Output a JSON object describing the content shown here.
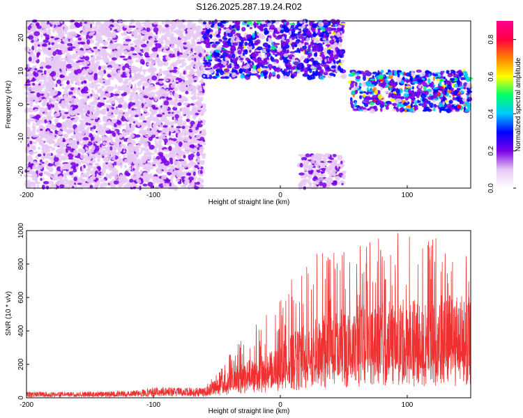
{
  "title": "S126.2025.287.19.24.R02",
  "spectrogram": {
    "type": "heatmap",
    "xlabel": "Height of straight line (km)",
    "ylabel": "Frequency (Hz)",
    "xlim": [
      -200,
      150
    ],
    "ylim": [
      -25,
      25
    ],
    "xticks": [
      -200,
      -100,
      0,
      100
    ],
    "yticks": [
      -20,
      -10,
      0,
      10,
      20
    ],
    "colorbar": {
      "label": "Normalized spectral amplitude",
      "range": [
        0,
        0.9
      ],
      "ticks": [
        0.0,
        0.2,
        0.4,
        0.6,
        0.8
      ],
      "colors": [
        "#ffffff",
        "#e6c8f5",
        "#7a00e6",
        "#0000ff",
        "#00c8ff",
        "#00ff66",
        "#ffff00",
        "#ff8000",
        "#ff0040",
        "#ff0090"
      ]
    },
    "regions": [
      {
        "name": "noise-left",
        "x": [
          -200,
          -60
        ],
        "freq": [
          -25,
          25
        ],
        "amplitude": 0.1
      },
      {
        "name": "upper-band",
        "x": [
          -60,
          50
        ],
        "freq": [
          8,
          25
        ],
        "amplitude": 0.22
      },
      {
        "name": "lower-band",
        "x": [
          15,
          50
        ],
        "freq": [
          -25,
          -15
        ],
        "amplitude": 0.1
      },
      {
        "name": "signal-track",
        "x": [
          55,
          150
        ],
        "freq": [
          -2,
          10
        ],
        "amplitude": 0.3
      }
    ]
  },
  "snr": {
    "type": "line",
    "xlabel": "Height of straight line (km)",
    "ylabel": "SNR (10 * v/v)",
    "xlim": [
      -200,
      150
    ],
    "ylim": [
      0,
      1000
    ],
    "xticks": [
      -200,
      -100,
      0,
      100
    ],
    "yticks": [
      0,
      200,
      400,
      600,
      800,
      1000
    ],
    "color": "#f03030",
    "envelope": [
      {
        "x": -200,
        "mean": 20,
        "max": 35
      },
      {
        "x": -120,
        "mean": 22,
        "max": 40
      },
      {
        "x": -100,
        "mean": 35,
        "max": 60
      },
      {
        "x": -60,
        "mean": 35,
        "max": 60
      },
      {
        "x": -45,
        "mean": 80,
        "max": 200
      },
      {
        "x": -30,
        "mean": 120,
        "max": 400
      },
      {
        "x": -10,
        "mean": 150,
        "max": 500
      },
      {
        "x": 0,
        "mean": 180,
        "max": 600
      },
      {
        "x": 20,
        "mean": 250,
        "max": 850
      },
      {
        "x": 50,
        "mean": 300,
        "max": 900
      },
      {
        "x": 100,
        "mean": 330,
        "max": 1000
      },
      {
        "x": 150,
        "mean": 350,
        "max": 900
      }
    ]
  }
}
